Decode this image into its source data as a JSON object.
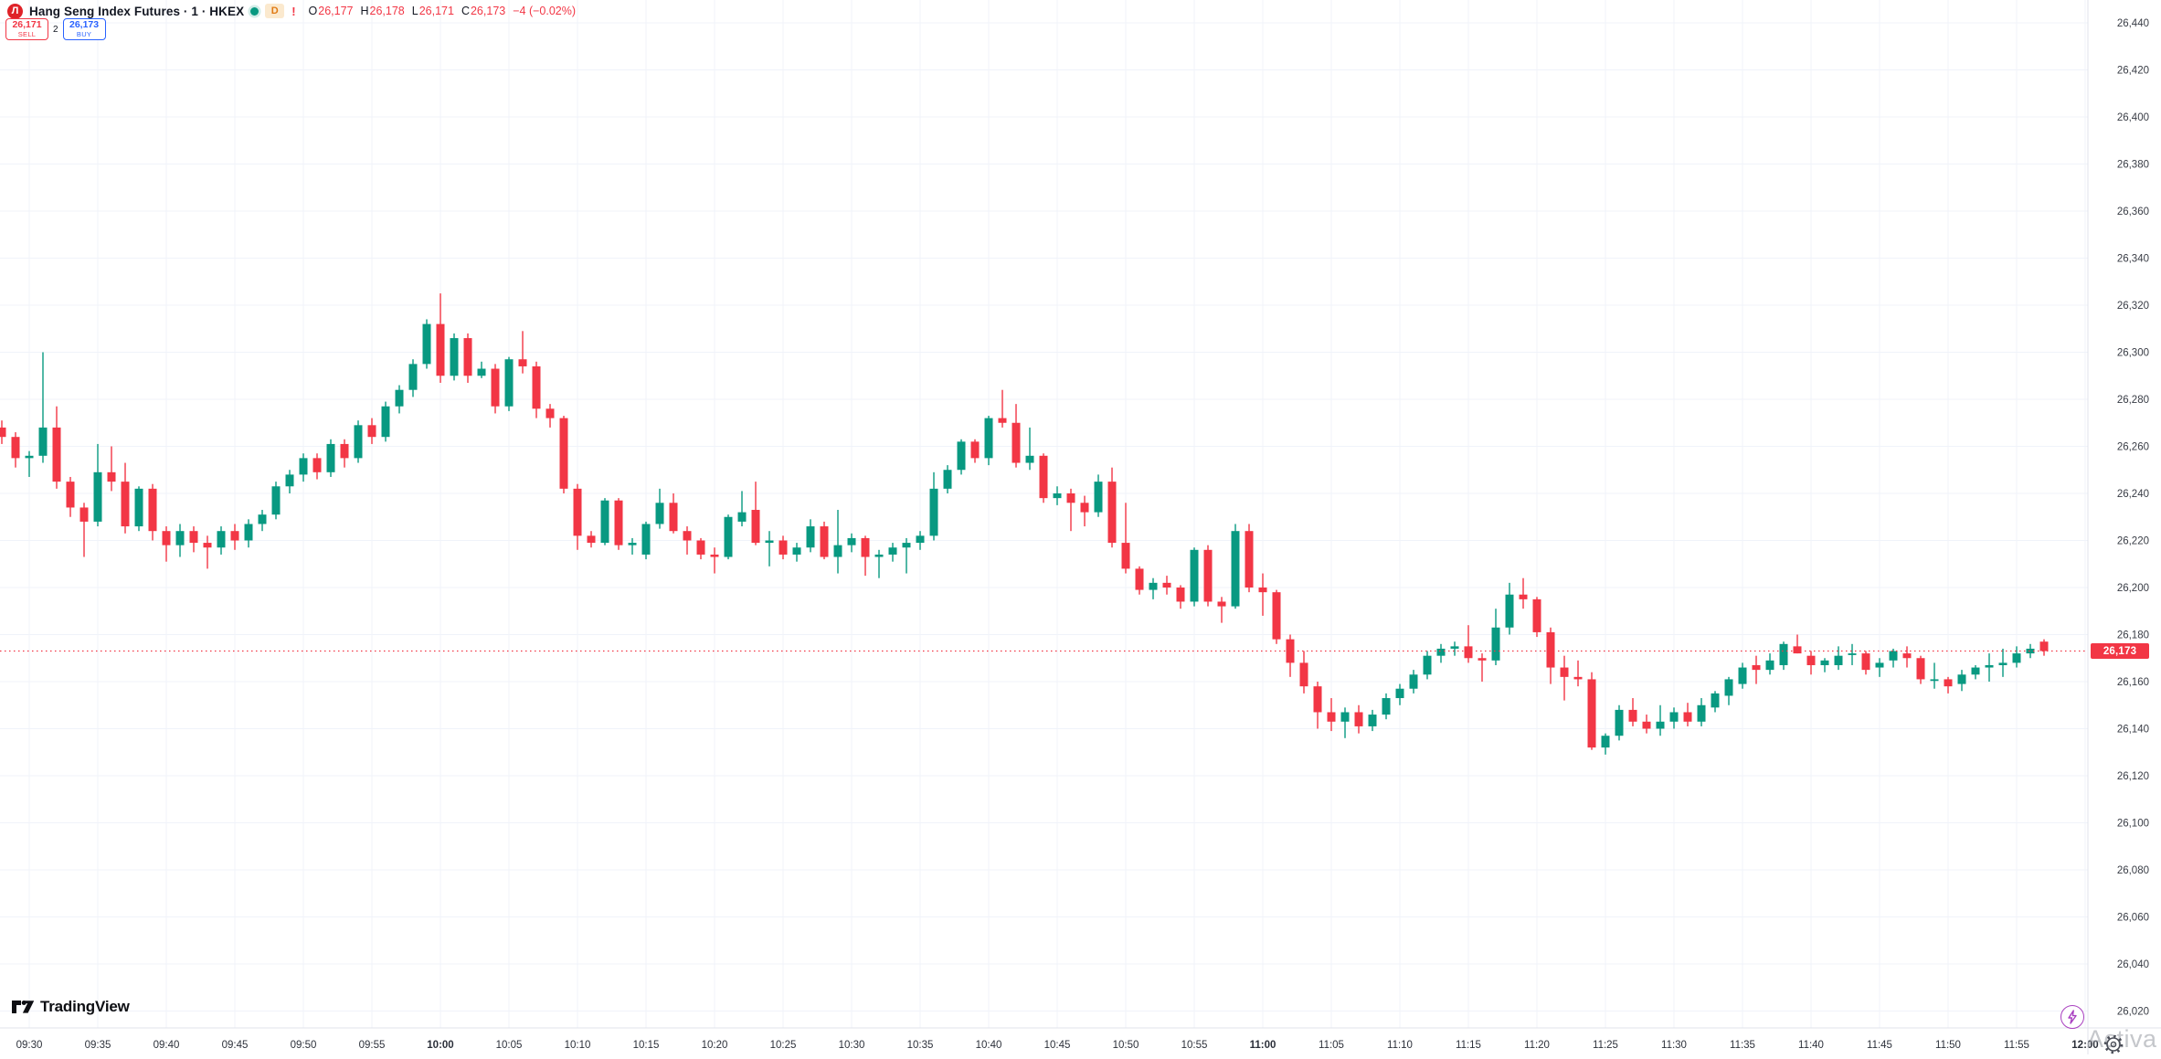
{
  "header": {
    "logo_letter": "Л",
    "symbol_title": "Hang Seng Index Futures · 1 · HKEX",
    "delayed_badge": "D",
    "alert_badge": "!",
    "ohlc": {
      "o_label": "O",
      "o_value": "26,177",
      "h_label": "H",
      "h_value": "26,178",
      "l_label": "L",
      "l_value": "26,171",
      "c_label": "C",
      "c_value": "26,173",
      "change": "−4 (−0.02%)"
    },
    "sell_button": {
      "price": "26,171",
      "label": "SELL"
    },
    "spread": "2",
    "buy_button": {
      "price": "26,173",
      "label": "BUY"
    }
  },
  "brand": {
    "name": "TradingView"
  },
  "bottom_right": {
    "watermark_text": "Activa"
  },
  "price_axis": {
    "last_price_label": "26,173"
  },
  "chart_data": {
    "type": "candlestick",
    "title": "Hang Seng Index Futures",
    "interval": "1",
    "exchange": "HKEX",
    "up_color": "#089981",
    "down_color": "#F23645",
    "grid_color": "#F0F3FA",
    "axis_text_color": "#131722",
    "last_price": 26173,
    "y_axis": {
      "min": 26020,
      "max": 26440,
      "step": 20
    },
    "x_axis": {
      "start": "09:30",
      "tick_interval_min": 5,
      "labels": [
        "09:30",
        "09:35",
        "09:40",
        "09:45",
        "09:50",
        "09:55",
        "10:00",
        "10:05",
        "10:10",
        "10:15",
        "10:20",
        "10:25",
        "10:30",
        "10:35",
        "10:40",
        "10:45",
        "10:50",
        "10:55",
        "11:00",
        "11:05",
        "11:10",
        "11:15",
        "11:20",
        "11:25",
        "11:30",
        "11:35",
        "11:40",
        "11:45",
        "11:50",
        "11:55",
        "12:00"
      ],
      "bold_labels": [
        "10:00",
        "11:00",
        "12:00"
      ]
    },
    "candles": [
      [
        26268,
        26271,
        26261,
        26264
      ],
      [
        26264,
        26266,
        26251,
        26255
      ],
      [
        26255,
        26258,
        26247,
        26256
      ],
      [
        26256,
        26300,
        26253,
        26268
      ],
      [
        26268,
        26277,
        26242,
        26245
      ],
      [
        26245,
        26247,
        26230,
        26234
      ],
      [
        26234,
        26236,
        26213,
        26228
      ],
      [
        26228,
        26261,
        26226,
        26249
      ],
      [
        26249,
        26260,
        26241,
        26245
      ],
      [
        26245,
        26253,
        26223,
        26226
      ],
      [
        26226,
        26243,
        26224,
        26242
      ],
      [
        26242,
        26244,
        26220,
        26224
      ],
      [
        26224,
        26226,
        26211,
        26218
      ],
      [
        26218,
        26227,
        26213,
        26224
      ],
      [
        26224,
        26226,
        26215,
        26219
      ],
      [
        26219,
        26222,
        26208,
        26217
      ],
      [
        26217,
        26226,
        26214,
        26224
      ],
      [
        26224,
        26227,
        26216,
        26220
      ],
      [
        26220,
        26229,
        26217,
        26227
      ],
      [
        26227,
        26233,
        26224,
        26231
      ],
      [
        26231,
        26245,
        26229,
        26243
      ],
      [
        26243,
        26250,
        26240,
        26248
      ],
      [
        26248,
        26257,
        26245,
        26255
      ],
      [
        26255,
        26257,
        26246,
        26249
      ],
      [
        26249,
        26263,
        26247,
        26261
      ],
      [
        26261,
        26263,
        26251,
        26255
      ],
      [
        26255,
        26271,
        26253,
        26269
      ],
      [
        26269,
        26272,
        26261,
        26264
      ],
      [
        26264,
        26279,
        26262,
        26277
      ],
      [
        26277,
        26286,
        26274,
        26284
      ],
      [
        26284,
        26297,
        26281,
        26295
      ],
      [
        26295,
        26314,
        26293,
        26312
      ],
      [
        26312,
        26325,
        26287,
        26290
      ],
      [
        26290,
        26308,
        26288,
        26306
      ],
      [
        26306,
        26308,
        26287,
        26290
      ],
      [
        26290,
        26296,
        26289,
        26293
      ],
      [
        26293,
        26295,
        26274,
        26277
      ],
      [
        26277,
        26298,
        26275,
        26297
      ],
      [
        26297,
        26309,
        26291,
        26294
      ],
      [
        26294,
        26296,
        26272,
        26276
      ],
      [
        26276,
        26278,
        26268,
        26272
      ],
      [
        26272,
        26273,
        26240,
        26242
      ],
      [
        26242,
        26244,
        26216,
        26222
      ],
      [
        26222,
        26224,
        26217,
        26219
      ],
      [
        26219,
        26238,
        26218,
        26237
      ],
      [
        26237,
        26238,
        26216,
        26218
      ],
      [
        26218,
        26221,
        26214,
        26219
      ],
      [
        26214,
        26228,
        26212,
        26227
      ],
      [
        26227,
        26242,
        26225,
        26236
      ],
      [
        26236,
        26240,
        26223,
        26224
      ],
      [
        26224,
        26226,
        26214,
        26220
      ],
      [
        26220,
        26221,
        26212,
        26214
      ],
      [
        26214,
        26217,
        26206,
        26213
      ],
      [
        26213,
        26231,
        26212,
        26230
      ],
      [
        26228,
        26241,
        26226,
        26232
      ],
      [
        26233,
        26245,
        26218,
        26219
      ],
      [
        26219,
        26224,
        26209,
        26220
      ],
      [
        26220,
        26222,
        26212,
        26214
      ],
      [
        26214,
        26219,
        26211,
        26217
      ],
      [
        26217,
        26229,
        26215,
        26226
      ],
      [
        26226,
        26228,
        26212,
        26213
      ],
      [
        26213,
        26233,
        26206,
        26218
      ],
      [
        26218,
        26223,
        26215,
        26221
      ],
      [
        26221,
        26222,
        26205,
        26213
      ],
      [
        26213,
        26216,
        26204,
        26214
      ],
      [
        26214,
        26219,
        26211,
        26217
      ],
      [
        26217,
        26221,
        26206,
        26219
      ],
      [
        26219,
        26224,
        26216,
        26222
      ],
      [
        26222,
        26249,
        26220,
        26242
      ],
      [
        26242,
        26252,
        26240,
        26250
      ],
      [
        26250,
        26263,
        26248,
        26262
      ],
      [
        26262,
        26263,
        26253,
        26255
      ],
      [
        26255,
        26273,
        26252,
        26272
      ],
      [
        26272,
        26284,
        26268,
        26270
      ],
      [
        26270,
        26278,
        26251,
        26253
      ],
      [
        26253,
        26268,
        26250,
        26256
      ],
      [
        26256,
        26257,
        26236,
        26238
      ],
      [
        26238,
        26243,
        26235,
        26240
      ],
      [
        26240,
        26242,
        26224,
        26236
      ],
      [
        26236,
        26239,
        26226,
        26232
      ],
      [
        26232,
        26248,
        26230,
        26245
      ],
      [
        26245,
        26251,
        26217,
        26219
      ],
      [
        26219,
        26236,
        26206,
        26208
      ],
      [
        26208,
        26209,
        26197,
        26199
      ],
      [
        26199,
        26204,
        26195,
        26202
      ],
      [
        26202,
        26205,
        26197,
        26200
      ],
      [
        26200,
        26201,
        26191,
        26194
      ],
      [
        26194,
        26217,
        26192,
        26216
      ],
      [
        26216,
        26218,
        26192,
        26194
      ],
      [
        26194,
        26196,
        26185,
        26192
      ],
      [
        26192,
        26227,
        26191,
        26224
      ],
      [
        26224,
        26227,
        26198,
        26200
      ],
      [
        26200,
        26206,
        26188,
        26198
      ],
      [
        26198,
        26199,
        26176,
        26178
      ],
      [
        26178,
        26180,
        26162,
        26168
      ],
      [
        26168,
        26173,
        26155,
        26158
      ],
      [
        26158,
        26160,
        26140,
        26147
      ],
      [
        26147,
        26153,
        26139,
        26143
      ],
      [
        26143,
        26149,
        26136,
        26147
      ],
      [
        26147,
        26150,
        26138,
        26141
      ],
      [
        26141,
        26148,
        26139,
        26146
      ],
      [
        26146,
        26155,
        26144,
        26153
      ],
      [
        26153,
        26159,
        26150,
        26157
      ],
      [
        26157,
        26165,
        26155,
        26163
      ],
      [
        26163,
        26173,
        26161,
        26171
      ],
      [
        26171,
        26176,
        26168,
        26174
      ],
      [
        26174,
        26177,
        26171,
        26175
      ],
      [
        26175,
        26184,
        26168,
        26170
      ],
      [
        26170,
        26172,
        26160,
        26169
      ],
      [
        26169,
        26191,
        26167,
        26183
      ],
      [
        26183,
        26202,
        26180,
        26197
      ],
      [
        26197,
        26204,
        26191,
        26195
      ],
      [
        26195,
        26196,
        26179,
        26181
      ],
      [
        26181,
        26183,
        26159,
        26166
      ],
      [
        26166,
        26171,
        26152,
        26162
      ],
      [
        26162,
        26169,
        26158,
        26161
      ],
      [
        26161,
        26164,
        26131,
        26132
      ],
      [
        26132,
        26138,
        26129,
        26137
      ],
      [
        26137,
        26150,
        26135,
        26148
      ],
      [
        26148,
        26153,
        26141,
        26143
      ],
      [
        26143,
        26146,
        26138,
        26140
      ],
      [
        26140,
        26150,
        26137,
        26143
      ],
      [
        26143,
        26149,
        26140,
        26147
      ],
      [
        26147,
        26151,
        26141,
        26143
      ],
      [
        26143,
        26153,
        26141,
        26150
      ],
      [
        26149,
        26156,
        26147,
        26155
      ],
      [
        26154,
        26162,
        26150,
        26161
      ],
      [
        26159,
        26168,
        26157,
        26166
      ],
      [
        26167,
        26171,
        26159,
        26165
      ],
      [
        26165,
        26172,
        26163,
        26169
      ],
      [
        26167,
        26177,
        26165,
        26176
      ],
      [
        26175,
        26180,
        26172,
        26172
      ],
      [
        26171,
        26173,
        26163,
        26167
      ],
      [
        26167,
        26170,
        26164,
        26169
      ],
      [
        26167,
        26175,
        26165,
        26171
      ],
      [
        26172,
        26176,
        26167,
        26172
      ],
      [
        26172,
        26173,
        26163,
        26165
      ],
      [
        26166,
        26170,
        26162,
        26168
      ],
      [
        26169,
        26174,
        26166,
        26173
      ],
      [
        26172,
        26175,
        26166,
        26170
      ],
      [
        26170,
        26171,
        26159,
        26161
      ],
      [
        26161,
        26168,
        26157,
        26161
      ],
      [
        26161,
        26162,
        26155,
        26158
      ],
      [
        26159,
        26165,
        26156,
        26163
      ],
      [
        26163,
        26167,
        26161,
        26166
      ],
      [
        26166,
        26172,
        26160,
        26167
      ],
      [
        26167,
        26174,
        26162,
        26168
      ],
      [
        26168,
        26175,
        26166,
        26172
      ],
      [
        26172,
        26176,
        26170,
        26174
      ],
      [
        26177,
        26178,
        26171,
        26173
      ]
    ]
  }
}
